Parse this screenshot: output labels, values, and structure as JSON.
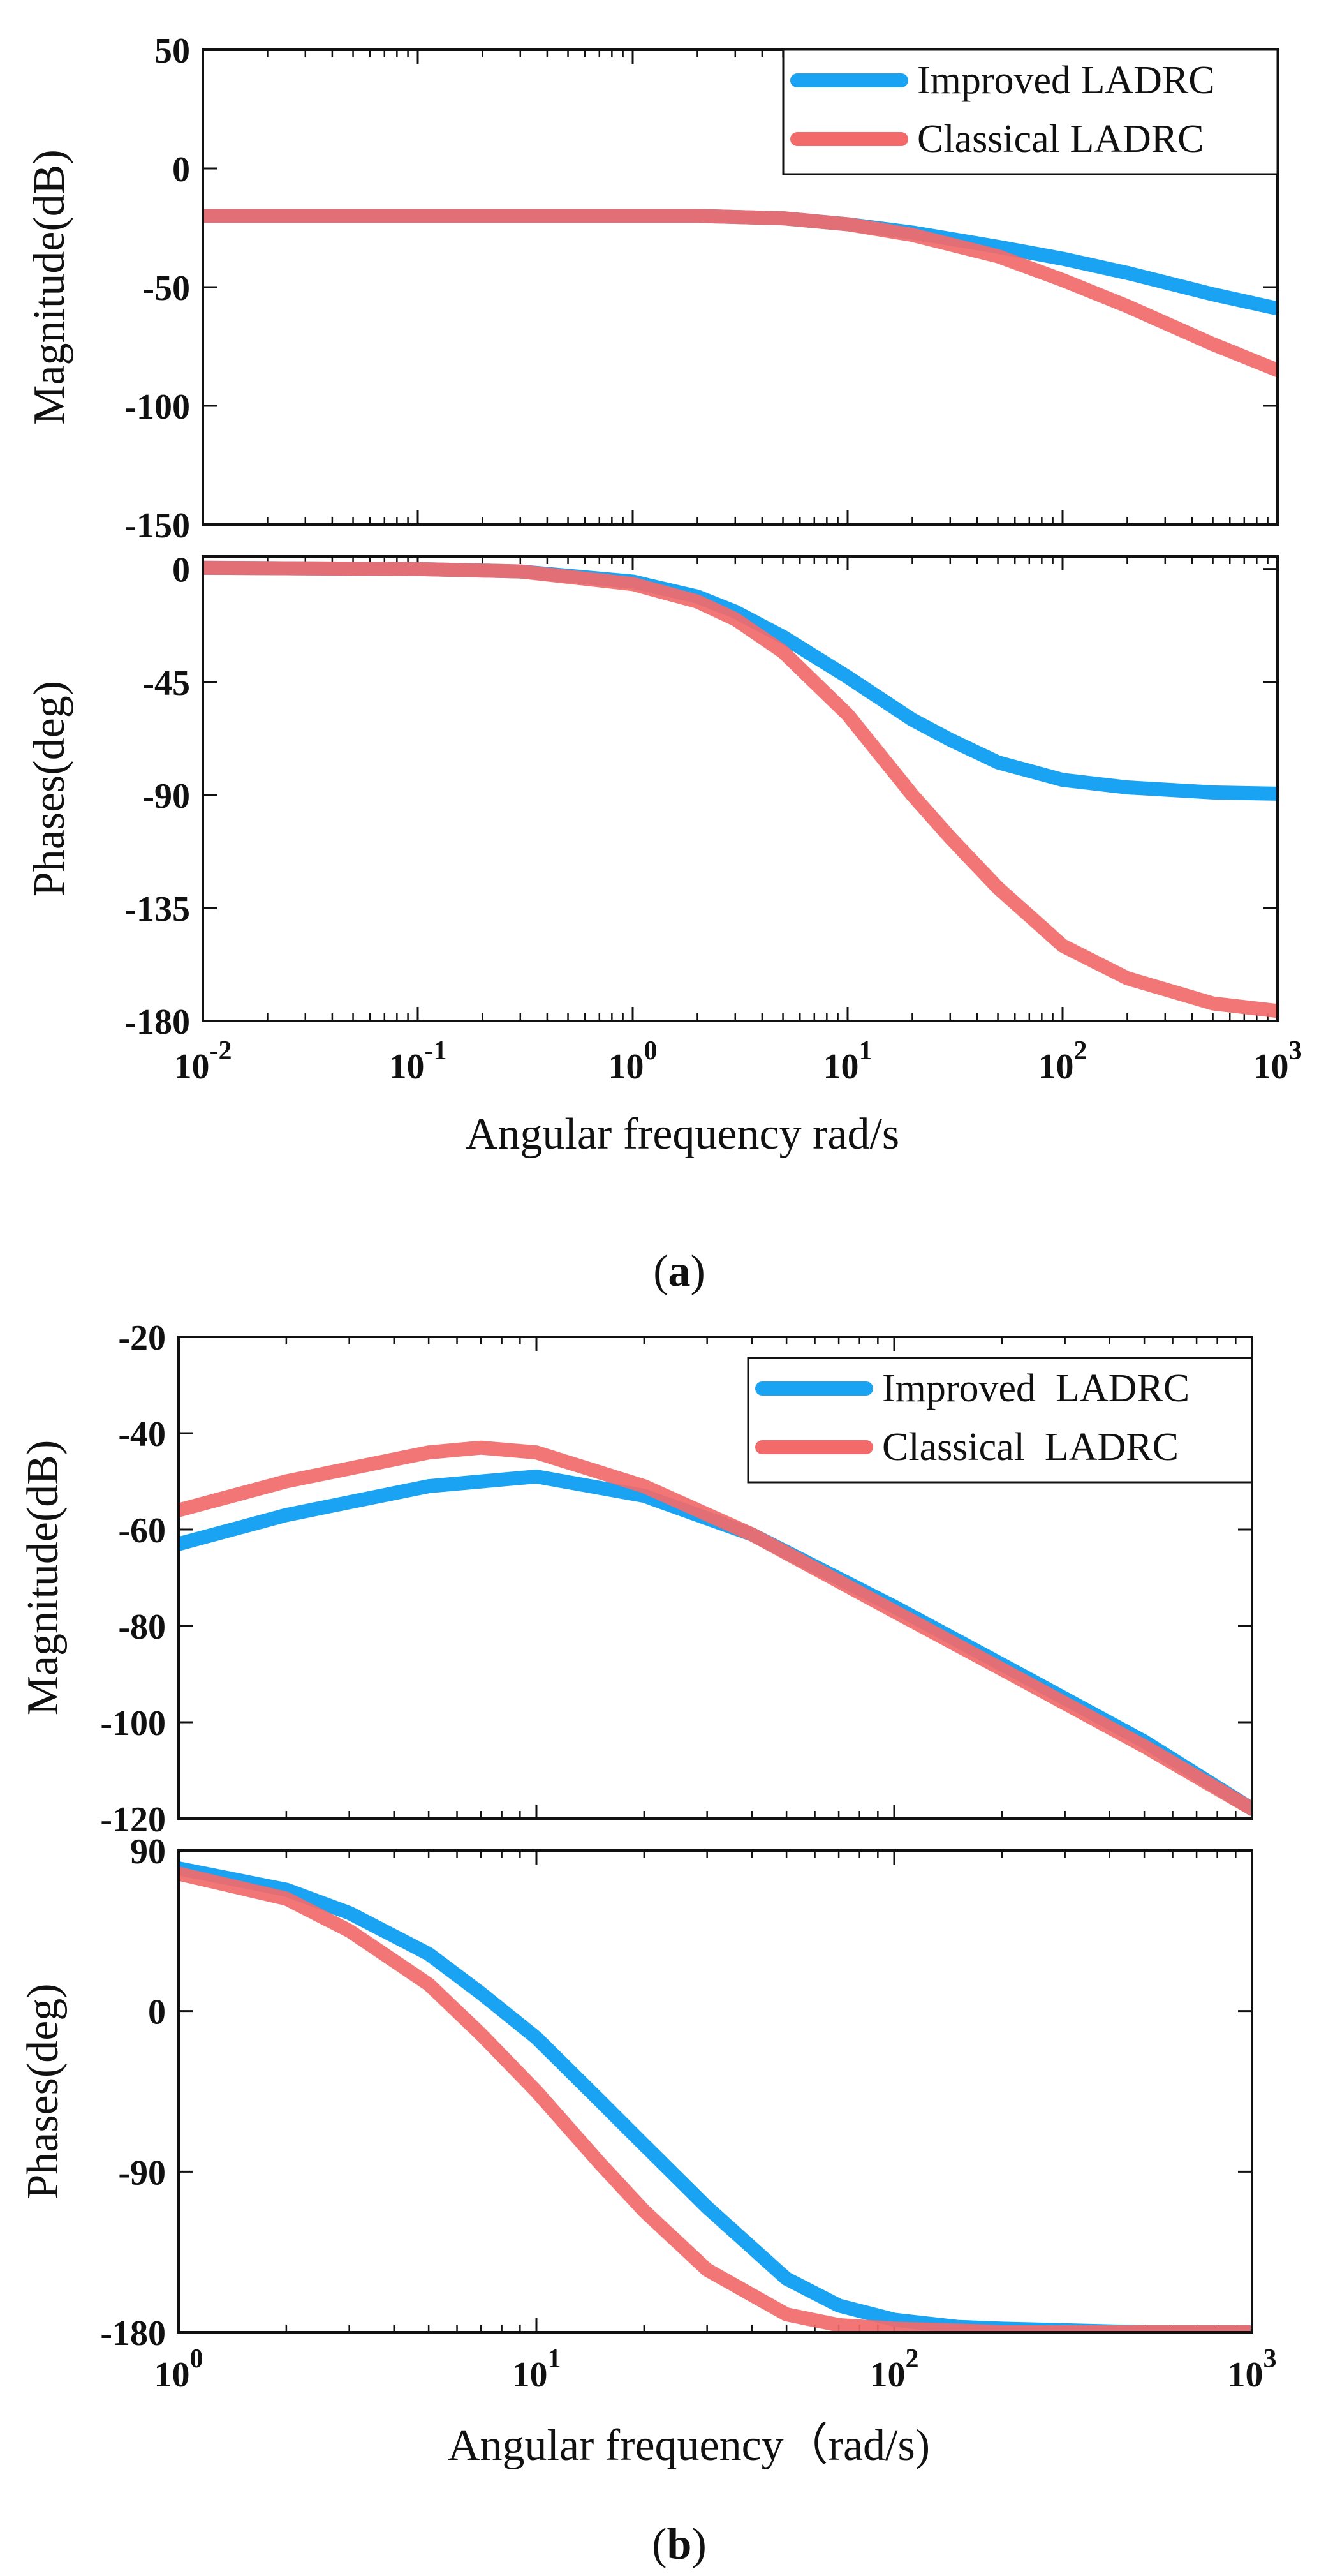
{
  "figure": {
    "captions": [
      {
        "pre": "(",
        "letter": "a",
        "post": ")"
      },
      {
        "pre": "(",
        "letter": "b",
        "post": ")"
      }
    ]
  },
  "chart_data": [
    {
      "id": "a",
      "type": "line",
      "xscale": "log",
      "xlim": [
        0.01,
        1000
      ],
      "xticks": [
        {
          "base": "10",
          "exp": "-2"
        },
        {
          "base": "10",
          "exp": "-1"
        },
        {
          "base": "10",
          "exp": "0"
        },
        {
          "base": "10",
          "exp": "1"
        },
        {
          "base": "10",
          "exp": "2"
        },
        {
          "base": "10",
          "exp": "3"
        }
      ],
      "xlabel": "Angular frequency rad/s",
      "legend": {
        "placement": "top-right",
        "entries": [
          "Improved LADRC",
          "Classical LADRC"
        ]
      },
      "colors": {
        "Improved LADRC": "#1aa3f2",
        "Classical LADRC": "#f26a6a"
      },
      "panels": [
        {
          "name": "magnitude",
          "ylabel": "Magnitude(dB)",
          "ylim": [
            -150,
            50
          ],
          "yticks": [
            "50",
            "0",
            "-50",
            "-100",
            "-150"
          ],
          "series": [
            {
              "name": "Improved LADRC",
              "x": [
                0.01,
                0.1,
                1,
                2,
                5,
                10,
                20,
                50,
                100,
                200,
                500,
                1000
              ],
              "y": [
                -20,
                -20,
                -20,
                -20,
                -21,
                -23.5,
                -27,
                -33,
                -38,
                -44,
                -53,
                -59
              ]
            },
            {
              "name": "Classical LADRC",
              "x": [
                0.01,
                0.1,
                1,
                2,
                5,
                10,
                20,
                50,
                100,
                200,
                500,
                1000
              ],
              "y": [
                -20,
                -20,
                -20,
                -20,
                -21,
                -23.5,
                -28,
                -37,
                -47,
                -58,
                -74,
                -85
              ]
            }
          ]
        },
        {
          "name": "phase",
          "ylabel": "Phases(deg)",
          "ylim": [
            -180,
            5
          ],
          "yticks": [
            "0",
            "-45",
            "-90",
            "-135",
            "-180"
          ],
          "series": [
            {
              "name": "Improved LADRC",
              "x": [
                0.01,
                0.1,
                0.3,
                1,
                2,
                3,
                5,
                10,
                20,
                30,
                50,
                100,
                200,
                500,
                1000
              ],
              "y": [
                0.5,
                0,
                -1,
                -5,
                -11,
                -17,
                -27,
                -43,
                -60,
                -68,
                -77,
                -84,
                -87,
                -89,
                -89.5
              ]
            },
            {
              "name": "Classical LADRC",
              "x": [
                0.01,
                0.1,
                0.3,
                1,
                2,
                3,
                5,
                10,
                20,
                30,
                50,
                100,
                200,
                500,
                1000
              ],
              "y": [
                0.5,
                0,
                -1,
                -6,
                -13,
                -20,
                -33,
                -58,
                -90,
                -107,
                -127,
                -150,
                -163,
                -173,
                -176
              ]
            }
          ]
        }
      ]
    },
    {
      "id": "b",
      "type": "line",
      "xscale": "log",
      "xlim": [
        1,
        1000
      ],
      "xticks": [
        {
          "base": "10",
          "exp": "0"
        },
        {
          "base": "10",
          "exp": "1"
        },
        {
          "base": "10",
          "exp": "2"
        },
        {
          "base": "10",
          "exp": "3"
        }
      ],
      "xlabel": "Angular frequency（rad/s)",
      "legend": {
        "placement": "top-right",
        "entries": [
          "Improved  LADRC",
          "Classical  LADRC"
        ]
      },
      "colors": {
        "Improved  LADRC": "#1aa3f2",
        "Classical  LADRC": "#f26a6a"
      },
      "panels": [
        {
          "name": "magnitude",
          "ylabel": "Magnitude(dB)",
          "ylim": [
            -120,
            -20
          ],
          "yticks": [
            "-20",
            "-40",
            "-60",
            "-80",
            "-100",
            "-120"
          ],
          "series": [
            {
              "name": "Improved  LADRC",
              "x": [
                1,
                2,
                5,
                10,
                20,
                40,
                100,
                200,
                500,
                1000
              ],
              "y": [
                -63,
                -57,
                -51,
                -49,
                -53,
                -61,
                -76,
                -88,
                -104,
                -118
              ]
            },
            {
              "name": "Classical  LADRC",
              "x": [
                1,
                2,
                5,
                7,
                10,
                20,
                40,
                100,
                200,
                500,
                1000
              ],
              "y": [
                -56,
                -50,
                -44,
                -43,
                -44,
                -51,
                -61,
                -77,
                -89,
                -105,
                -118
              ]
            }
          ]
        },
        {
          "name": "phase",
          "ylabel": "Phases(deg)",
          "ylim": [
            -180,
            90
          ],
          "yticks": [
            "90",
            "0",
            "-90",
            "-180"
          ],
          "series": [
            {
              "name": "Improved  LADRC",
              "x": [
                1,
                2,
                3,
                5,
                7,
                10,
                15,
                20,
                30,
                50,
                70,
                100,
                150,
                200,
                500,
                1000
              ],
              "y": [
                80,
                68,
                55,
                32,
                10,
                -15,
                -50,
                -75,
                -110,
                -150,
                -165,
                -173,
                -177,
                -178,
                -180,
                -180
              ]
            },
            {
              "name": "Classical  LADRC",
              "x": [
                1,
                2,
                3,
                5,
                7,
                10,
                15,
                20,
                30,
                50,
                70,
                100,
                150,
                200,
                500,
                1000
              ],
              "y": [
                77,
                63,
                45,
                15,
                -13,
                -45,
                -85,
                -112,
                -145,
                -170,
                -176,
                -178,
                -179,
                -180,
                -180,
                -180
              ]
            }
          ]
        }
      ]
    }
  ]
}
